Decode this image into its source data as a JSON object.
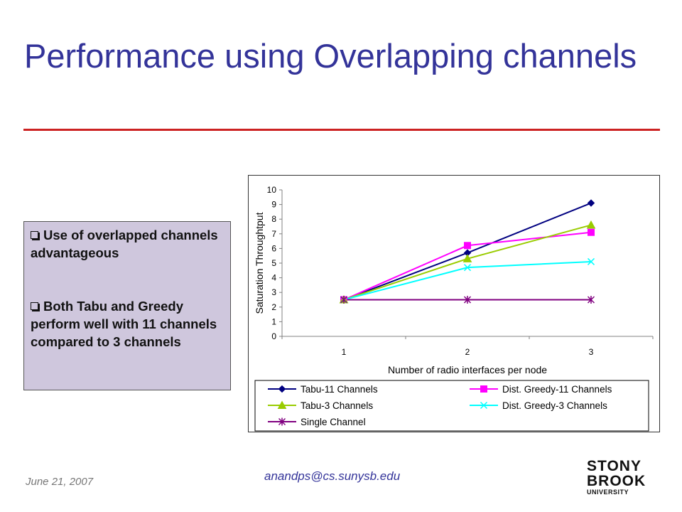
{
  "slide": {
    "title": "Performance using Overlapping channels",
    "bullets": [
      "Use of overlapped channels advantageous",
      "Both Tabu and Greedy perform well with 11 channels compared to 3 channels"
    ],
    "footer_date": "June 21, 2007",
    "footer_email": "anandps@cs.sunysb.edu",
    "logo": {
      "line1": "STONY",
      "line2": "BROOK",
      "line3": "UNIVERSITY"
    }
  },
  "colors": {
    "title": "#333399",
    "rule": "#cc2222",
    "bullet_box": "#cfc7dd"
  },
  "chart_data": {
    "type": "line",
    "categories": [
      "1",
      "2",
      "3"
    ],
    "xlabel": "Number of radio interfaces per node",
    "ylabel": "Saturation Throughtput",
    "ylim": [
      0,
      10
    ],
    "yticks": [
      "0",
      "1",
      "2",
      "3",
      "4",
      "5",
      "6",
      "7",
      "8",
      "9",
      "10"
    ],
    "grid": false,
    "legend_position": "bottom",
    "series": [
      {
        "name": "Tabu-11 Channels",
        "values": [
          2.5,
          5.7,
          9.1
        ],
        "color": "#000080",
        "marker": "diamond"
      },
      {
        "name": "Dist. Greedy-11 Channels",
        "values": [
          2.5,
          6.2,
          7.1
        ],
        "color": "#ff00ff",
        "marker": "square"
      },
      {
        "name": "Tabu-3 Channels",
        "values": [
          2.5,
          5.3,
          7.6
        ],
        "color": "#99cc00",
        "marker": "triangle"
      },
      {
        "name": "Dist. Greedy-3 Channels",
        "values": [
          2.5,
          4.7,
          5.1
        ],
        "color": "#00ffff",
        "marker": "x"
      },
      {
        "name": "Single Channel",
        "values": [
          2.5,
          2.5,
          2.5
        ],
        "color": "#800080",
        "marker": "star"
      }
    ]
  }
}
